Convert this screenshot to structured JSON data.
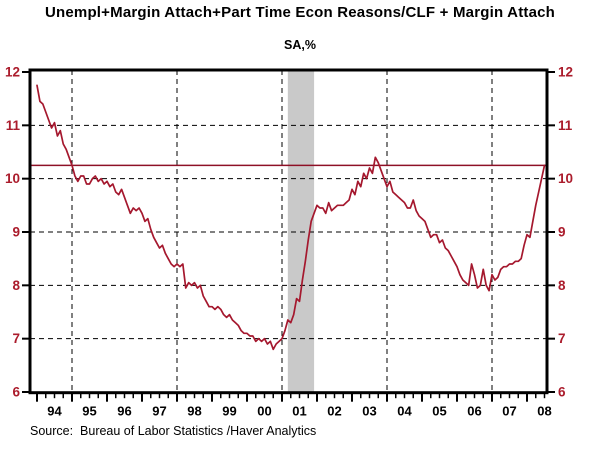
{
  "header": {
    "title": "Unempl+Margin Attach+Part Time Econ Reasons/CLF + Margin Attach",
    "subtitle": "SA,%"
  },
  "footer": {
    "source": "Source:  Bureau of Labor Statistics /Haver Analytics"
  },
  "colors": {
    "accent_text": "#ab1c2c",
    "line": "#a5182e",
    "reference_line": "#8e1026",
    "recession_band": "#c9c9c9",
    "grid": "#000000",
    "frame": "#000000",
    "x_label": "#000000"
  },
  "chart_data": {
    "type": "line",
    "title": "Unempl+Margin Attach+Part Time Econ Reasons/CLF + Margin Attach",
    "subtitle": "SA,%",
    "ylabel": "SA,%",
    "xlabel": "",
    "freq": "monthly",
    "start": "1994-01",
    "end": "2008-07",
    "ylim": [
      6,
      12
    ],
    "y_ticks": [
      6,
      7,
      8,
      9,
      10,
      11,
      12
    ],
    "y_gridlines": [
      7,
      8,
      9,
      10,
      11
    ],
    "x_gridline_years": [
      1995,
      1998,
      2001,
      2004,
      2007
    ],
    "x_year_labels": [
      "94",
      "95",
      "96",
      "97",
      "98",
      "99",
      "00",
      "01",
      "02",
      "03",
      "04",
      "05",
      "06",
      "07",
      "08"
    ],
    "reference_line_value": 10.25,
    "recession_band": {
      "start": "2001-03",
      "end": "2001-12"
    },
    "grid_on": true,
    "legend": "none",
    "values": [
      11.75,
      11.45,
      11.4,
      11.25,
      11.1,
      10.95,
      11.05,
      10.8,
      10.9,
      10.65,
      10.55,
      10.4,
      10.25,
      10.05,
      9.95,
      10.05,
      10.05,
      9.9,
      9.9,
      10.0,
      10.05,
      9.95,
      10.0,
      9.9,
      9.95,
      9.85,
      9.9,
      9.75,
      9.7,
      9.8,
      9.65,
      9.5,
      9.35,
      9.45,
      9.4,
      9.45,
      9.35,
      9.2,
      9.25,
      9.05,
      8.9,
      8.8,
      8.7,
      8.75,
      8.6,
      8.5,
      8.4,
      8.35,
      8.4,
      8.35,
      8.4,
      7.95,
      8.05,
      8.0,
      8.05,
      7.95,
      8.0,
      7.8,
      7.7,
      7.6,
      7.6,
      7.55,
      7.6,
      7.55,
      7.45,
      7.4,
      7.45,
      7.35,
      7.3,
      7.25,
      7.15,
      7.1,
      7.1,
      7.05,
      7.05,
      6.95,
      7.0,
      6.95,
      7.0,
      6.9,
      6.95,
      6.8,
      6.9,
      6.95,
      7.0,
      7.15,
      7.35,
      7.3,
      7.45,
      7.75,
      7.7,
      8.1,
      8.45,
      8.85,
      9.2,
      9.35,
      9.5,
      9.45,
      9.45,
      9.35,
      9.55,
      9.4,
      9.45,
      9.5,
      9.5,
      9.5,
      9.55,
      9.6,
      9.8,
      9.7,
      9.95,
      9.85,
      10.1,
      10.0,
      10.2,
      10.1,
      10.4,
      10.3,
      10.15,
      10.0,
      9.85,
      9.95,
      9.75,
      9.7,
      9.65,
      9.6,
      9.55,
      9.45,
      9.45,
      9.6,
      9.4,
      9.3,
      9.25,
      9.2,
      9.05,
      8.9,
      8.95,
      8.95,
      8.8,
      8.85,
      8.7,
      8.65,
      8.55,
      8.45,
      8.35,
      8.2,
      8.1,
      8.05,
      8.0,
      8.4,
      8.2,
      7.95,
      8.0,
      8.3,
      8.0,
      7.9,
      8.2,
      8.1,
      8.15,
      8.3,
      8.35,
      8.35,
      8.4,
      8.4,
      8.45,
      8.45,
      8.5,
      8.75,
      8.95,
      8.9,
      9.2,
      9.5,
      9.75,
      10.0,
      10.25
    ],
    "source": "Source:  Bureau of Labor Statistics /Haver Analytics"
  }
}
